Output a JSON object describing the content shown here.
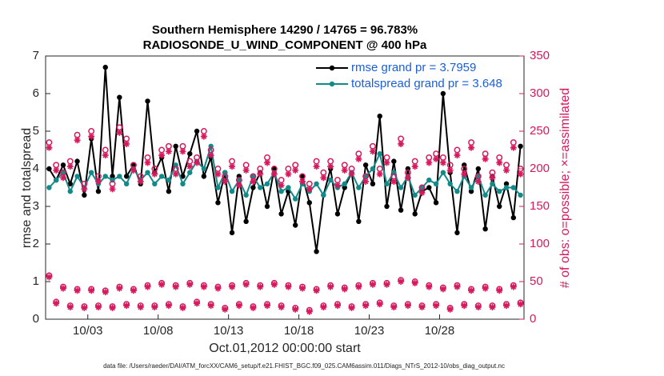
{
  "chart_data": {
    "type": "line",
    "title": "Southern Hemisphere 14290 / 14765 = 96.783%",
    "subtitle": "RADIOSONDE_U_WIND_COMPONENT @ 400 hPa",
    "xlabel": "Oct.01,2012 00:00:00 start",
    "ylabel": "rmse and totalspread",
    "y2label": "# of obs: o=possible; ×=assimilated",
    "footnote": "data file: /Users/raeder/DAI/ATM_forcXX/CAM6_setup/f.e21.FHIST_BGC.f09_025.CAM6assim.011/Diags_NTrS_2012-10/obs_diag_output.nc",
    "x": [
      0.25,
      0.75,
      1.25,
      1.75,
      2.25,
      2.75,
      3.25,
      3.75,
      4.25,
      4.75,
      5.25,
      5.75,
      6.25,
      6.75,
      7.25,
      7.75,
      8.25,
      8.75,
      9.25,
      9.75,
      10.25,
      10.75,
      11.25,
      11.75,
      12.25,
      12.75,
      13.25,
      13.75,
      14.25,
      14.75,
      15.25,
      15.75,
      16.25,
      16.75,
      17.25,
      17.75,
      18.25,
      18.75,
      19.25,
      19.75,
      20.25,
      20.75,
      21.25,
      21.75,
      22.25,
      22.75,
      23.25,
      23.75,
      24.25,
      24.75,
      25.25,
      25.75,
      26.25,
      26.75,
      27.25,
      27.75,
      28.25,
      28.75,
      29.25,
      29.75,
      30.25,
      30.75,
      31.25,
      31.75,
      32.25,
      32.75,
      33.25,
      33.75
    ],
    "xlim": [
      0,
      34
    ],
    "xticks": [
      {
        "value": 3,
        "label": "10/03"
      },
      {
        "value": 8,
        "label": "10/08"
      },
      {
        "value": 13,
        "label": "10/13"
      },
      {
        "value": 18,
        "label": "10/18"
      },
      {
        "value": 23,
        "label": "10/23"
      },
      {
        "value": 28,
        "label": "10/28"
      }
    ],
    "ylim": [
      0,
      7
    ],
    "yticks": [
      0,
      1,
      2,
      3,
      4,
      5,
      6,
      7
    ],
    "y2lim": [
      0,
      350
    ],
    "y2ticks": [
      0,
      50,
      100,
      150,
      200,
      250,
      300,
      350
    ],
    "y2color": "#d6185c",
    "legend": "upper right",
    "series": [
      {
        "name": "rmse grand pr = 3.7959",
        "color": "#000000",
        "marker": "dot",
        "values": [
          4.0,
          3.7,
          4.1,
          3.6,
          4.2,
          3.3,
          4.8,
          3.4,
          6.7,
          3.8,
          5.9,
          3.8,
          4.1,
          3.6,
          5.8,
          3.9,
          4.3,
          3.4,
          4.6,
          3.8,
          4.4,
          5.0,
          3.8,
          4.3,
          3.1,
          3.9,
          2.3,
          3.8,
          2.6,
          3.5,
          3.9,
          3.0,
          4.0,
          2.8,
          3.4,
          2.5,
          3.8,
          3.1,
          1.8,
          3.3,
          4.0,
          2.8,
          3.5,
          3.9,
          2.6,
          4.1,
          3.6,
          5.4,
          3.0,
          4.2,
          2.9,
          4.0,
          2.8,
          3.4,
          3.5,
          3.1,
          6.0,
          3.9,
          2.3,
          4.1,
          3.4,
          4.0,
          2.4,
          3.8,
          3.0,
          3.6,
          2.7,
          4.6
        ]
      },
      {
        "name": "totalspread grand pr = 3.648",
        "color": "#138a8a",
        "marker": "dot",
        "values": [
          3.5,
          3.7,
          3.9,
          3.4,
          3.8,
          3.5,
          3.9,
          3.6,
          3.8,
          3.7,
          3.8,
          3.6,
          4.0,
          3.7,
          3.9,
          3.6,
          3.8,
          3.7,
          4.1,
          3.6,
          3.9,
          4.2,
          4.0,
          4.6,
          3.5,
          3.9,
          3.4,
          3.7,
          3.3,
          3.8,
          3.5,
          3.6,
          3.9,
          3.4,
          3.5,
          3.2,
          3.6,
          3.4,
          3.6,
          3.3,
          3.7,
          3.5,
          3.6,
          3.9,
          3.5,
          3.8,
          4.0,
          4.4,
          3.6,
          3.9,
          3.5,
          3.8,
          3.3,
          3.5,
          3.7,
          3.6,
          3.9,
          3.6,
          3.4,
          3.8,
          3.5,
          3.8,
          3.3,
          3.6,
          3.4,
          3.5,
          3.5,
          3.3
        ]
      },
      {
        "color": "#d6185c",
        "marker": "o",
        "axis": "y2",
        "values": [
          235,
          205,
          195,
          210,
          245,
          180,
          250,
          190,
          225,
          180,
          255,
          240,
          205,
          190,
          215,
          200,
          225,
          230,
          200,
          230,
          210,
          215,
          250,
          225,
          200,
          190,
          210,
          185,
          205,
          190,
          200,
          215,
          200,
          185,
          200,
          205,
          190,
          180,
          210,
          195,
          210,
          185,
          205,
          200,
          220,
          190,
          230,
          200,
          215,
          190,
          240,
          195,
          210,
          175,
          215,
          220,
          215,
          205,
          225,
          200,
          235,
          190,
          220,
          195,
          215,
          205,
          235,
          200
        ]
      },
      {
        "color": "#d6185c",
        "marker": "*",
        "axis": "y2",
        "values": [
          228,
          198,
          188,
          203,
          238,
          173,
          243,
          183,
          218,
          173,
          248,
          233,
          198,
          183,
          208,
          193,
          218,
          223,
          193,
          223,
          203,
          208,
          243,
          218,
          193,
          183,
          203,
          178,
          198,
          183,
          193,
          208,
          193,
          178,
          193,
          198,
          183,
          173,
          203,
          188,
          203,
          178,
          198,
          193,
          213,
          183,
          223,
          193,
          208,
          183,
          233,
          188,
          203,
          168,
          208,
          213,
          208,
          198,
          218,
          193,
          228,
          183,
          213,
          188,
          208,
          198,
          228,
          193
        ]
      },
      {
        "color": "#d6185c",
        "marker": "o",
        "axis": "y2",
        "values": [
          58,
          23,
          43,
          18,
          40,
          17,
          40,
          18,
          38,
          17,
          43,
          20,
          40,
          18,
          45,
          18,
          48,
          20,
          45,
          17,
          48,
          23,
          45,
          20,
          43,
          15,
          45,
          20,
          48,
          17,
          45,
          20,
          48,
          18,
          45,
          15,
          43,
          12,
          40,
          18,
          45,
          20,
          42,
          17,
          45,
          20,
          48,
          22,
          48,
          18,
          52,
          20,
          50,
          18,
          45,
          20,
          42,
          15,
          45,
          20,
          40,
          18,
          43,
          18,
          40,
          20,
          45,
          22
        ]
      },
      {
        "color": "#d6185c",
        "marker": "*",
        "axis": "y2",
        "values": [
          56,
          21,
          41,
          16,
          38,
          15,
          38,
          16,
          36,
          15,
          41,
          18,
          38,
          16,
          43,
          16,
          46,
          18,
          43,
          15,
          46,
          21,
          43,
          18,
          41,
          13,
          43,
          18,
          46,
          15,
          43,
          18,
          46,
          16,
          43,
          13,
          41,
          10,
          38,
          16,
          43,
          18,
          40,
          15,
          43,
          18,
          46,
          20,
          46,
          16,
          50,
          18,
          48,
          16,
          43,
          18,
          40,
          13,
          43,
          18,
          38,
          16,
          41,
          16,
          38,
          18,
          43,
          20
        ]
      }
    ]
  }
}
